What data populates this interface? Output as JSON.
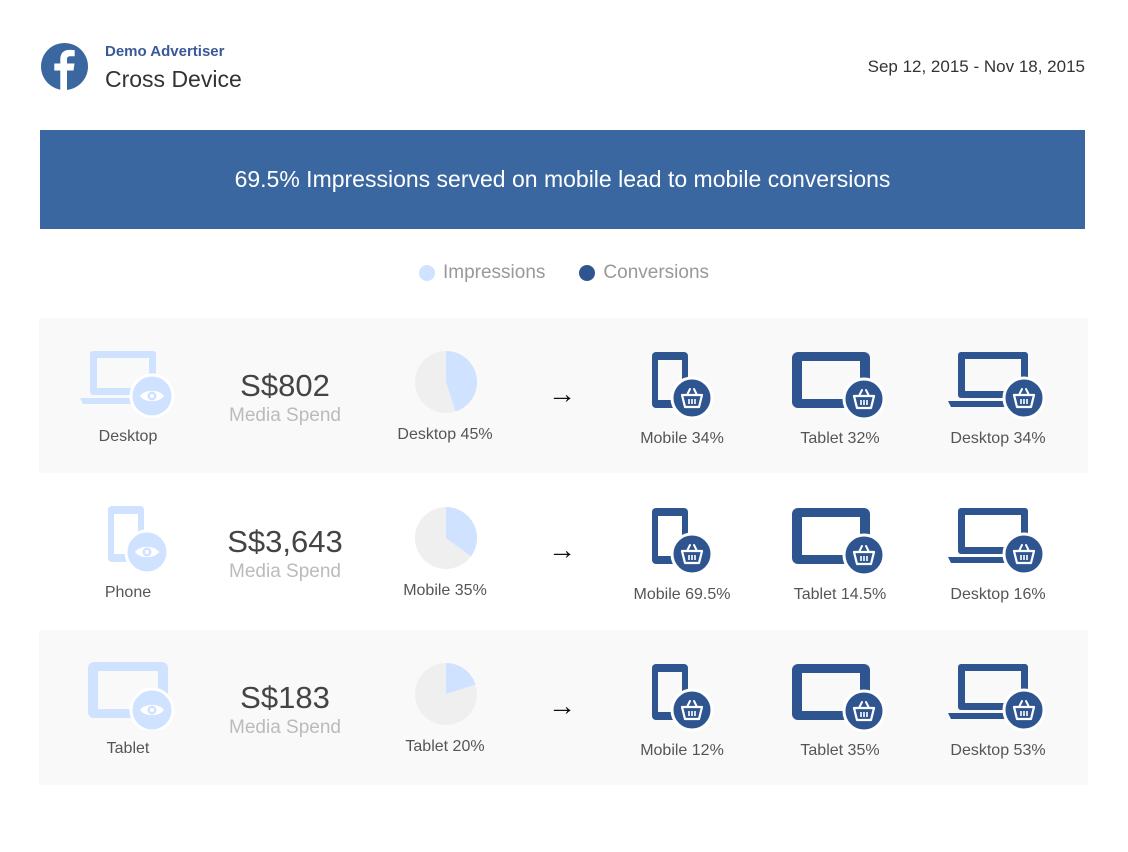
{
  "header": {
    "advertiser": "Demo Advertiser",
    "title": "Cross Device",
    "date_range": "Sep 12, 2015 - Nov 18, 2015"
  },
  "banner": {
    "text": "69.5% Impressions served on mobile lead to mobile conversions"
  },
  "legend": {
    "impressions": "Impressions",
    "conversions": "Conversions"
  },
  "colors": {
    "brand": "#3b67a0",
    "impressions": "#cfe2ff",
    "conversions": "#2f5591",
    "pie_background": "#efefef"
  },
  "icons": {
    "logo": "facebook-logo-icon",
    "desktop_impression": "desktop-eye-icon",
    "phone_impression": "phone-eye-icon",
    "tablet_impression": "tablet-eye-icon",
    "mobile_conversion": "phone-basket-icon",
    "tablet_conversion": "tablet-basket-icon",
    "desktop_conversion": "desktop-basket-icon"
  },
  "rows": [
    {
      "source_label": "Desktop",
      "spend": "S$802",
      "spend_label": "Media Spend",
      "pie_label": "Desktop 45%",
      "pie_fraction": 0.45,
      "arrow": "→",
      "conversions": [
        "Mobile 34%",
        "Tablet 32%",
        "Desktop 34%"
      ]
    },
    {
      "source_label": "Phone",
      "spend": "S$3,643",
      "spend_label": "Media Spend",
      "pie_label": "Mobile 35%",
      "pie_fraction": 0.35,
      "arrow": "→",
      "conversions": [
        "Mobile 69.5%",
        "Tablet 14.5%",
        "Desktop 16%"
      ]
    },
    {
      "source_label": "Tablet",
      "spend": "S$183",
      "spend_label": "Media Spend",
      "pie_label": "Tablet 20%",
      "pie_fraction": 0.2,
      "arrow": "→",
      "conversions": [
        "Mobile 12%",
        "Tablet 35%",
        "Desktop 53%"
      ]
    }
  ]
}
